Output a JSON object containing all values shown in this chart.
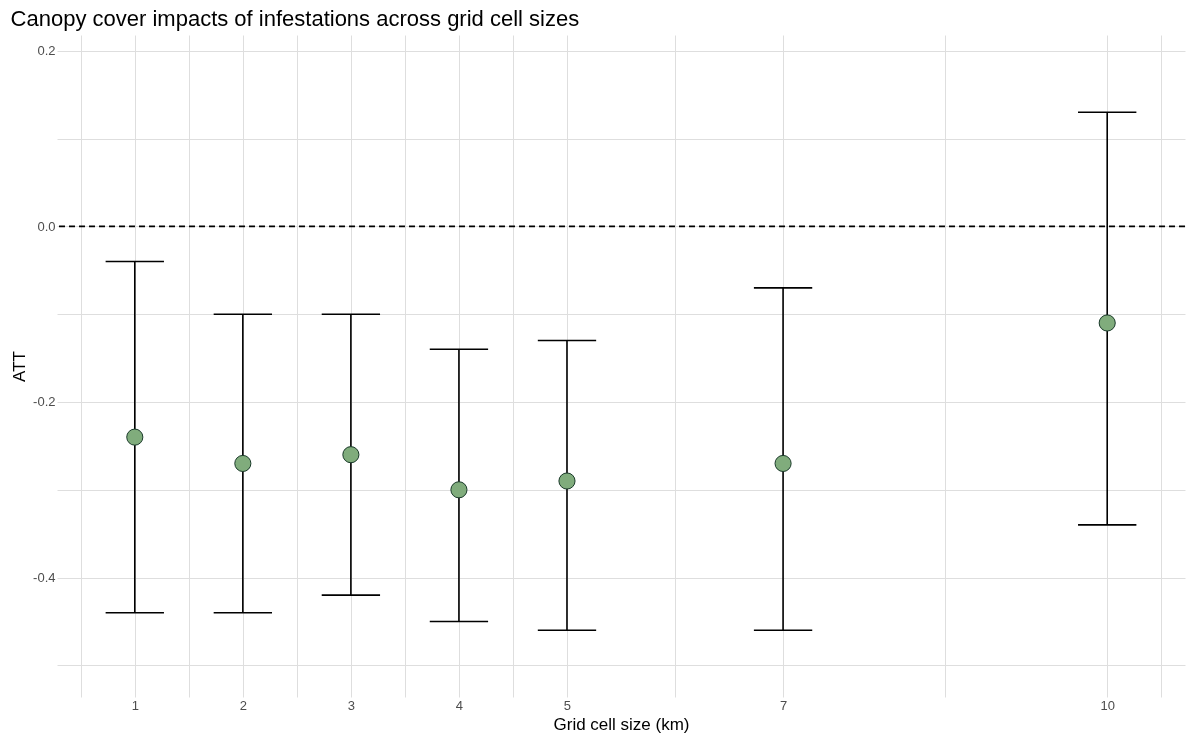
{
  "chart_data": {
    "type": "scatter",
    "title": "Canopy cover impacts of infestations across grid cell sizes",
    "xlabel": "Grid cell size (km)",
    "ylabel": "ATT",
    "x": [
      1,
      2,
      3,
      4,
      5,
      7,
      10
    ],
    "color": "#80ac7c",
    "values": [
      -0.24,
      -0.27,
      -0.26,
      -0.3,
      -0.29,
      -0.27,
      -0.11
    ],
    "errors": [
      [
        -0.44,
        -0.04
      ],
      [
        -0.44,
        -0.1
      ],
      [
        -0.42,
        -0.1
      ],
      [
        -0.45,
        -0.14
      ],
      [
        -0.46,
        -0.13
      ],
      [
        -0.46,
        -0.07
      ],
      [
        -0.34,
        0.13
      ]
    ],
    "xlim": [
      0.28,
      10.72
    ],
    "ylim": [
      -0.536,
      0.218
    ],
    "xticks": [
      {
        "value": 0.5,
        "label": null
      },
      1,
      {
        "value": 1.5,
        "label": null
      },
      2,
      {
        "value": 2.5,
        "label": null
      },
      3,
      {
        "value": 3.5,
        "label": null
      },
      4,
      {
        "value": 4.5,
        "label": null
      },
      5,
      {
        "value": 6,
        "label": null
      },
      7,
      {
        "value": 8.5,
        "label": null
      },
      10,
      {
        "value": 10.5,
        "label": null
      }
    ],
    "yticks": [
      {
        "value": -0.5,
        "label": null
      },
      -0.4,
      {
        "value": -0.3,
        "label": null
      },
      -0.2,
      {
        "value": -0.1,
        "label": null
      },
      {
        "value": 0,
        "label": "0.0"
      },
      {
        "value": 0.1,
        "label": null
      },
      0.2
    ],
    "ref_lines": [
      {
        "axis": "y",
        "value": 0,
        "line_style": "dashed",
        "color": "#000000"
      }
    ],
    "grid": true,
    "marker": "circle"
  }
}
